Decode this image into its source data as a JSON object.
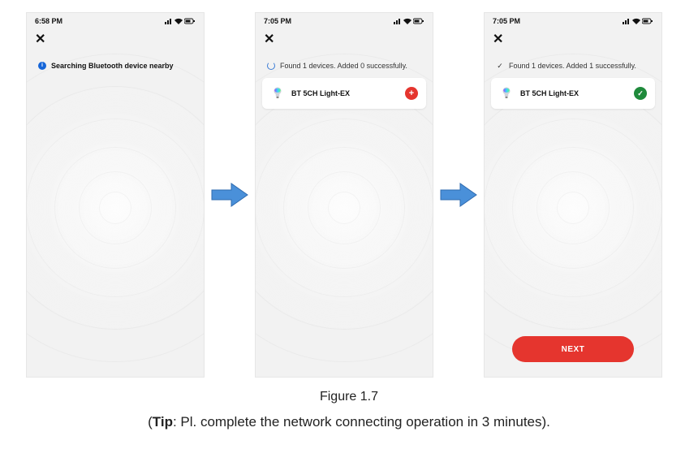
{
  "figure_label": "Figure 1.7",
  "tip_prefix": "Tip",
  "tip_text": ": Pl. complete the network connecting operation in 3 minutes).",
  "arrow": {
    "fill": "#4a90d9",
    "stroke": "#2f6bb0"
  },
  "rings": [
    380,
    300,
    220,
    150,
    90,
    40
  ],
  "screens": [
    {
      "time": "6:58 PM",
      "status_glyphs": "⁴ᴳ ▮◨",
      "status_message": "Searching Bluetooth device nearby",
      "status_style": "bold",
      "status_icon": "info",
      "device": null,
      "next": false
    },
    {
      "time": "7:05 PM",
      "status_glyphs": "⁴ᴳ ▮◨",
      "status_message": "Found 1 devices. Added 0 successfully.",
      "status_style": "light",
      "status_icon": "spinner",
      "device": {
        "name": "BT 5CH Light-EX",
        "badge": "add"
      },
      "next": false
    },
    {
      "time": "7:05 PM",
      "status_glyphs": "⁴ᴳ ▮◨",
      "status_message": "Found 1 devices. Added 1 successfully.",
      "status_style": "light",
      "status_icon": "check",
      "device": {
        "name": "BT 5CH Light-EX",
        "badge": "ok"
      },
      "next": true
    }
  ],
  "next_label": "NEXT",
  "colors": {
    "phone_bg": "#f2f2f2",
    "accent_red": "#e5352e",
    "accent_green": "#1f8a3b",
    "info_blue": "#1565d8"
  }
}
